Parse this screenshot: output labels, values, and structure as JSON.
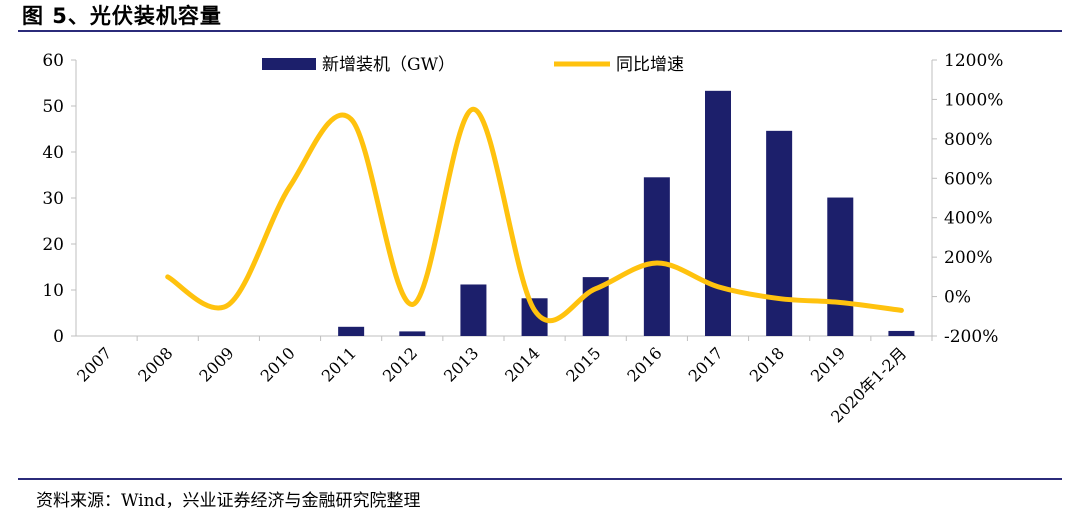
{
  "figure": {
    "title": "图 5、光伏装机容量",
    "source": "资料来源：Wind，兴业证券经济与金融研究院整理"
  },
  "colors": {
    "bar": "#1c1f6b",
    "line": "#ffc20e",
    "rule": "#2b2b7a",
    "axis": "#bfbfbf"
  },
  "chart_data": {
    "type": "bar",
    "categories": [
      "2007",
      "2008",
      "2009",
      "2010",
      "2011",
      "2012",
      "2013",
      "2014",
      "2015",
      "2016",
      "2017",
      "2018",
      "2019",
      "2020年1-2月"
    ],
    "series": [
      {
        "name": "新增装机（GW）",
        "type": "bar",
        "axis": "left",
        "values": [
          0,
          0,
          0,
          0,
          2,
          1,
          11.2,
          8.2,
          12.8,
          34.5,
          53.3,
          44.6,
          30.1,
          1.1
        ]
      },
      {
        "name": "同比增速",
        "type": "line",
        "axis": "right",
        "values": [
          null,
          100,
          -40,
          560,
          900,
          -40,
          950,
          -70,
          40,
          170,
          50,
          -10,
          -30,
          -70
        ]
      }
    ],
    "y_left": {
      "min": 0,
      "max": 60,
      "ticks": [
        "0",
        "10",
        "20",
        "30",
        "40",
        "50",
        "60"
      ]
    },
    "y_right": {
      "min": -200,
      "max": 1200,
      "ticks": [
        "-200%",
        "0%",
        "200%",
        "400%",
        "600%",
        "800%",
        "1000%",
        "1200%"
      ]
    },
    "legend_position": "top-center",
    "grid": false
  }
}
